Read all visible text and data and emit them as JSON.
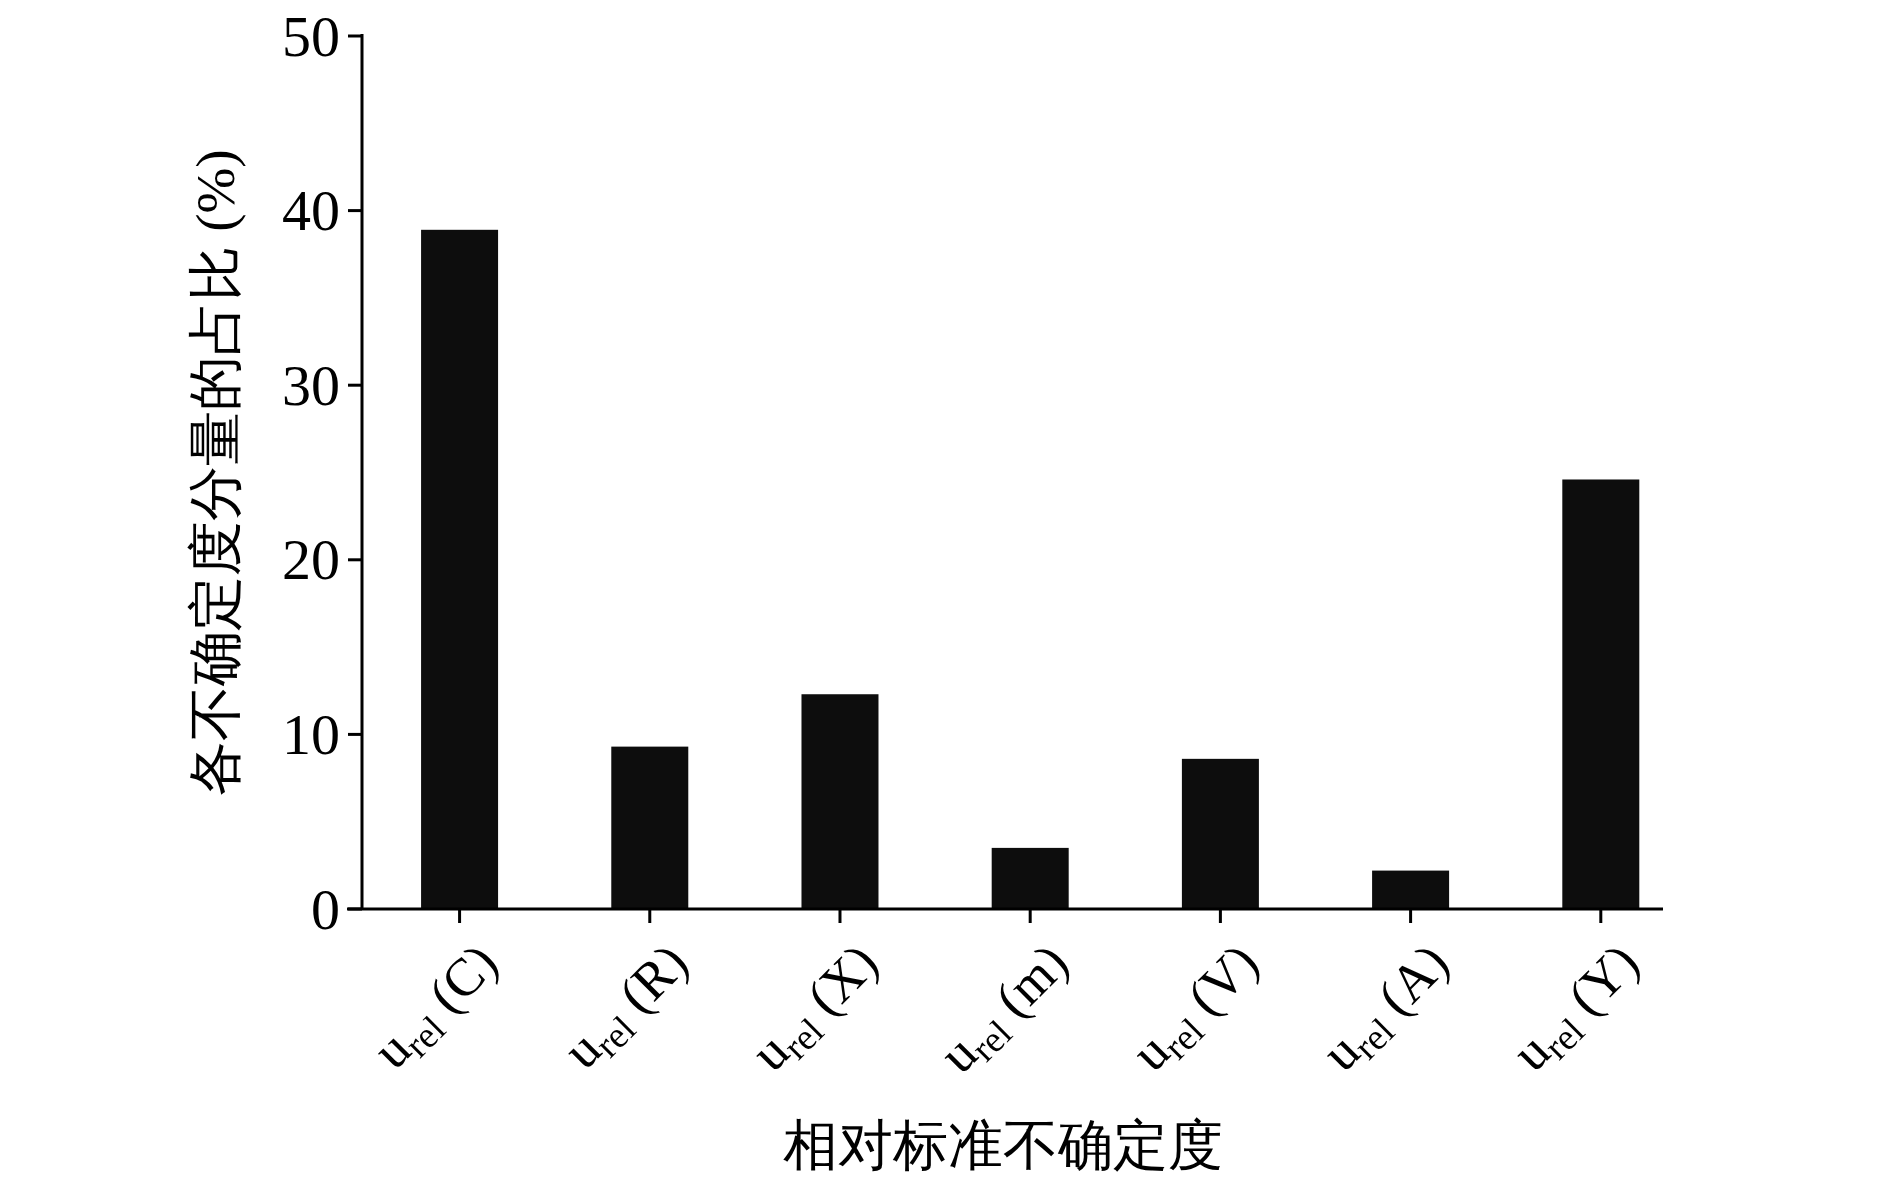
{
  "chart_data": {
    "type": "bar",
    "xlabel": "相对标准不确定度",
    "ylabel": "各不确定度分量的占比 (%)",
    "categories": [
      "u$_{rel}$ (C)",
      "u$_{rel}$ (R)",
      "u$_{rel}$ (X)",
      "u$_{rel}$ (m)",
      "u$_{rel}$ (V)",
      "u$_{rel}$ (A)",
      "u$_{rel}$ (Y)"
    ],
    "values": [
      38.9,
      9.3,
      12.3,
      3.5,
      8.6,
      2.2,
      24.6
    ],
    "color": "#0d0d0d",
    "ylim": [
      0,
      50
    ],
    "yticks": [
      0,
      10,
      20,
      30,
      40,
      50
    ],
    "grid": false
  }
}
